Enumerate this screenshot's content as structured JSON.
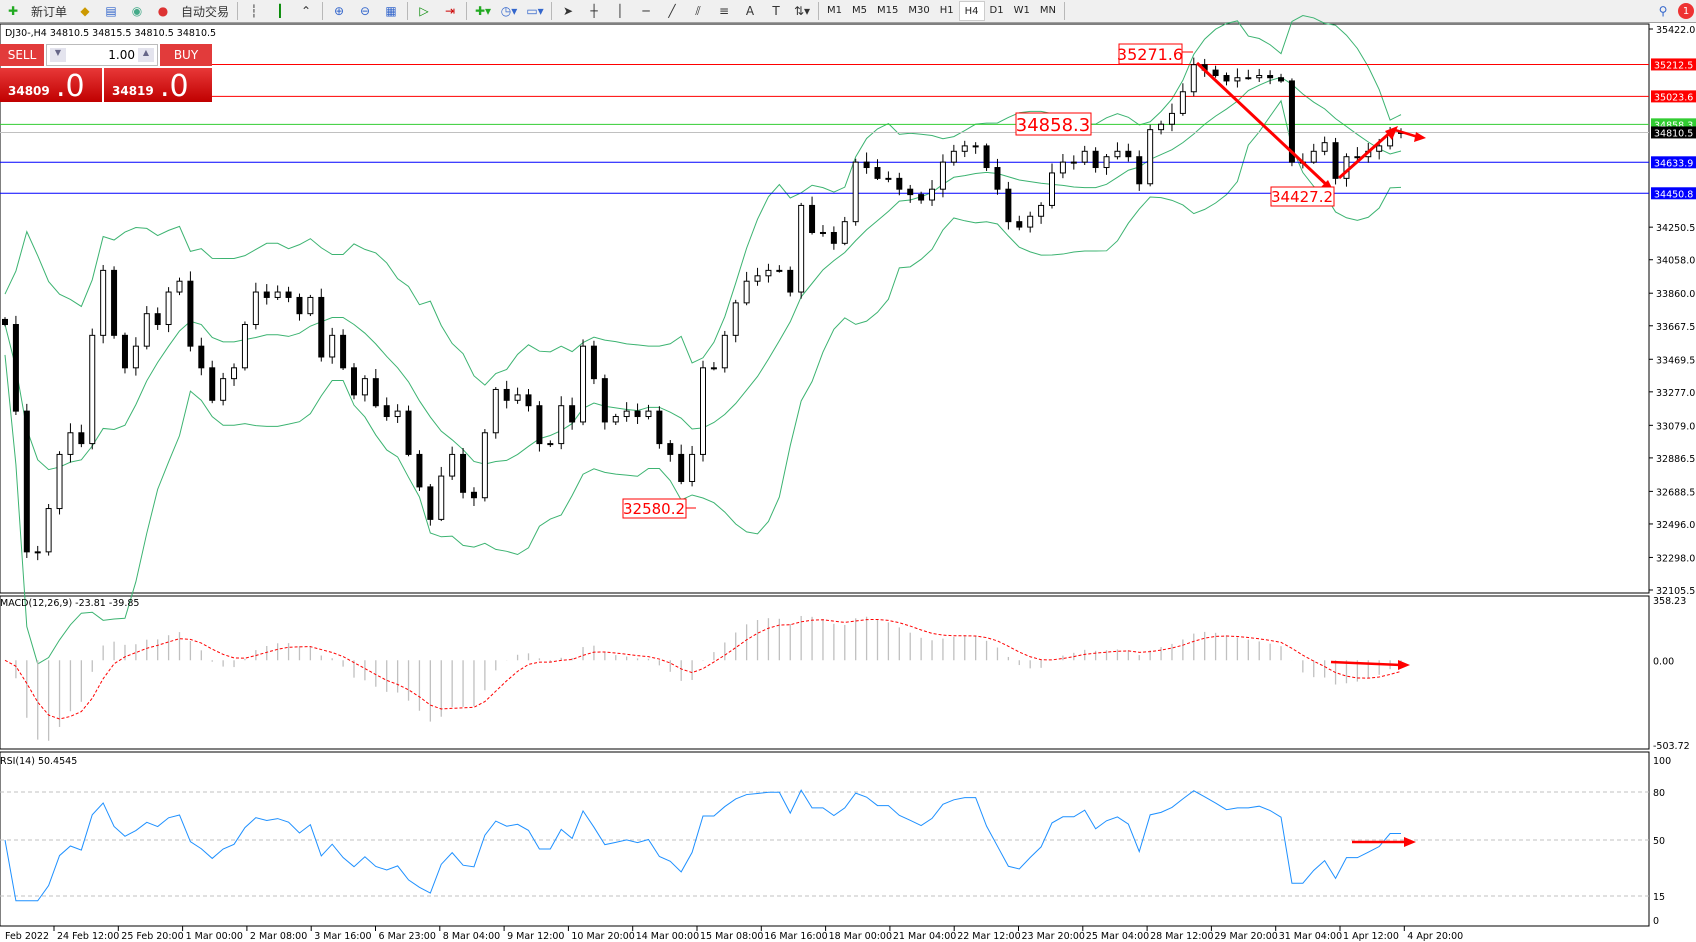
{
  "toolbar": {
    "new_order": "新订单",
    "auto_trading": "自动交易",
    "timeframes": [
      "M1",
      "M5",
      "M15",
      "M30",
      "H1",
      "H4",
      "D1",
      "W1",
      "MN"
    ],
    "active_timeframe": "H4",
    "notification_count": "1",
    "icons": [
      "new-order-icon",
      "navigator-icon",
      "market-watch-icon",
      "signals-icon",
      "auto-trading-icon",
      "bar-chart-icon",
      "candlestick-icon",
      "line-chart-icon",
      "zoom-in-icon",
      "zoom-out-icon",
      "tile-windows-icon",
      "auto-scroll-icon",
      "chart-shift-icon",
      "indicators-icon",
      "periods-icon",
      "templates-icon",
      "cursor-icon",
      "crosshair-icon",
      "vertical-line-icon",
      "horizontal-line-icon",
      "trendline-icon",
      "fibonacci-icon",
      "fibo-fan-icon",
      "text-icon",
      "text-label-icon",
      "arrows-icon",
      "search-icon",
      "notification-icon"
    ]
  },
  "chart_header": "DJ30-,H4  34810.5 34815.5 34810.5 34810.5",
  "trade_panel": {
    "sell_label": "SELL",
    "buy_label": "BUY",
    "lot": "1.00",
    "sell_price_main": "34809",
    "sell_price_pips": ".0",
    "buy_price_main": "34819",
    "buy_price_pips": ".0"
  },
  "colors": {
    "bearish": "#000000",
    "bullish": "#ffffff",
    "bands": "#3cb371",
    "resistance": "#ff0000",
    "support": "#0000ff",
    "pivot": "#32cd32",
    "rsi": "#1e90ff",
    "macd_hist": "#c0c0c0",
    "macd_signal": "#ff0000"
  },
  "chart_data": [
    {
      "type": "candlestick",
      "symbol": "DJ30-",
      "timeframe": "H4",
      "ylim": [
        32105.5,
        35422.0
      ],
      "y_ticks": [
        "35422.0",
        "34250.5",
        "34058.0",
        "33860.0",
        "33667.5",
        "33469.5",
        "33277.0",
        "33079.0",
        "32886.5",
        "32688.5",
        "32496.0",
        "32298.0",
        "32105.5"
      ],
      "x_ticks": [
        "Feb 2022",
        "24 Feb 12:00",
        "25 Feb 20:00",
        "1 Mar 00:00",
        "2 Mar 08:00",
        "3 Mar 16:00",
        "6 Mar 23:00",
        "8 Mar 04:00",
        "9 Mar 12:00",
        "10 Mar 20:00",
        "14 Mar 00:00",
        "15 Mar 08:00",
        "16 Mar 16:00",
        "18 Mar 00:00",
        "21 Mar 04:00",
        "22 Mar 12:00",
        "23 Mar 20:00",
        "25 Mar 04:00",
        "28 Mar 12:00",
        "29 Mar 20:00",
        "31 Mar 04:00",
        "1 Apr 12:00",
        "4 Apr 20:00"
      ],
      "closes": [
        33675,
        33163,
        32331,
        32331,
        32587,
        32907,
        33035,
        32971,
        33611,
        33995,
        33611,
        33419,
        33547,
        33739,
        33675,
        33867,
        33931,
        33547,
        33419,
        33227,
        33355,
        33419,
        33675,
        33867,
        33835,
        33867,
        33835,
        33739,
        33835,
        33483,
        33611,
        33419,
        33259,
        33355,
        33195,
        33131,
        33163,
        32907,
        32715,
        32523,
        32779,
        32907,
        32683,
        32651,
        33035,
        33291,
        33227,
        33259,
        33195,
        32971,
        32971,
        33195,
        33099,
        33547,
        33355,
        33099,
        33131,
        33163,
        33131,
        33163,
        32971,
        32907,
        32747,
        32907,
        33419,
        33419,
        33611,
        33803,
        33931,
        33963,
        33995,
        33995,
        33867,
        34379,
        34219,
        34219,
        34155,
        34283,
        34635,
        34603,
        34539,
        34539,
        34475,
        34443,
        34411,
        34475,
        34635,
        34699,
        34731,
        34731,
        34603,
        34475,
        34283,
        34251,
        34315,
        34379,
        34571,
        34635,
        34635,
        34699,
        34603,
        34667,
        34699,
        34667,
        34507,
        34827,
        34859,
        34923,
        35051,
        35211,
        35179,
        35147,
        35115,
        35134,
        35134,
        35147,
        35134,
        35115,
        34635,
        34635,
        34699,
        34750,
        34539,
        34667,
        34667,
        34699,
        34731,
        34810,
        34810.5
      ],
      "horizontal_lines": [
        {
          "price": "35212.5",
          "color": "#ff0000"
        },
        {
          "price": "35023.6",
          "color": "#ff0000"
        },
        {
          "price": "34858.3",
          "color": "#32cd32"
        },
        {
          "price": "34810.5",
          "color": "#000000"
        },
        {
          "price": "34633.9",
          "color": "#0000ff"
        },
        {
          "price": "34450.8",
          "color": "#0000ff"
        }
      ],
      "annotations": [
        "35271.6",
        "34858.3",
        "34427.2",
        "32580.2"
      ],
      "overlay": "Bollinger Bands"
    },
    {
      "type": "histogram+line",
      "label": "MACD(12,26,9) -23.81 -39.85",
      "y_ticks": [
        "358.23",
        "0.00",
        "-503.72"
      ],
      "ylim": [
        -503.72,
        358.23
      ]
    },
    {
      "type": "line",
      "label": "RSI(14) 50.4545",
      "y_ticks": [
        "100",
        "80",
        "50",
        "15",
        "0"
      ],
      "levels": [
        80,
        50,
        15
      ],
      "ylim": [
        0,
        100
      ]
    }
  ]
}
